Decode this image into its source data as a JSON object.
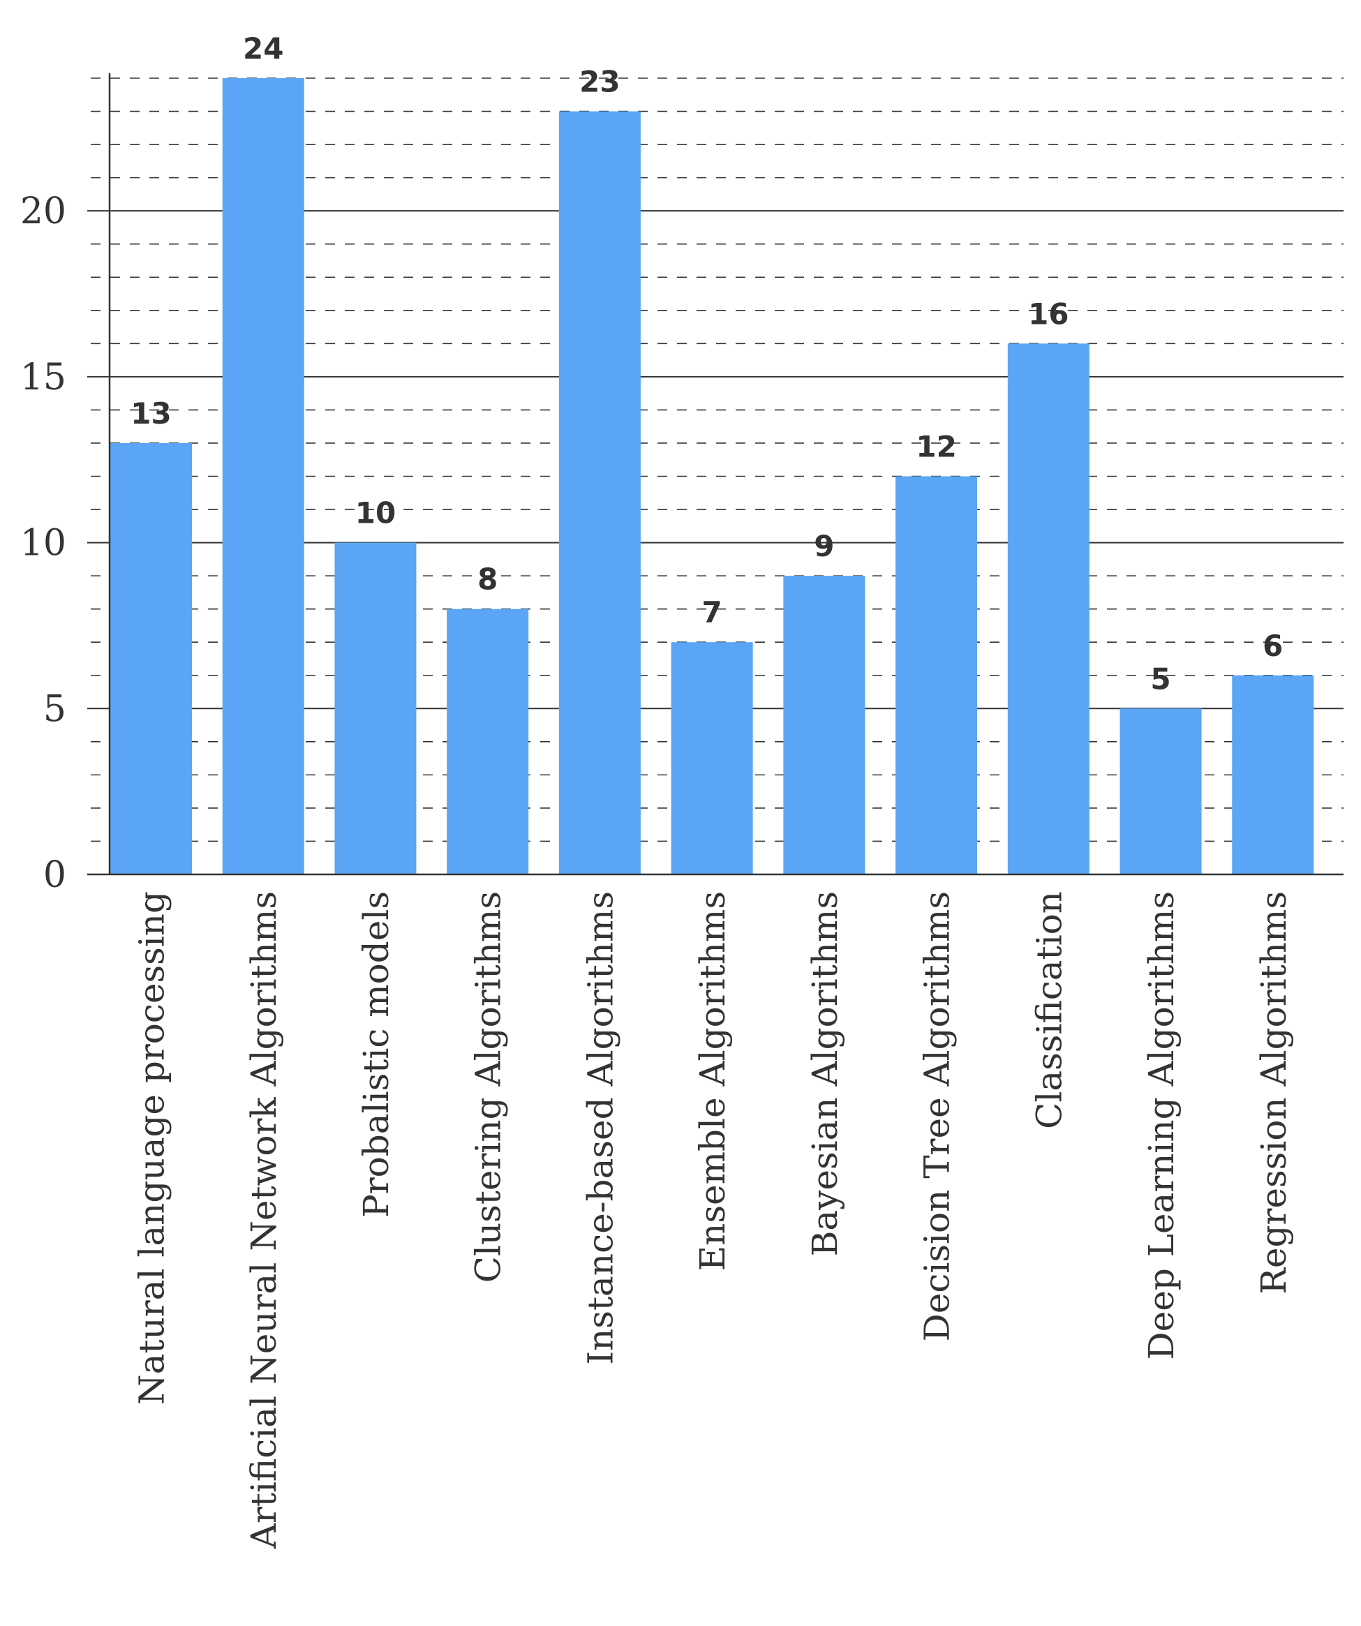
{
  "chart_data": {
    "type": "bar",
    "title": "",
    "xlabel": "",
    "ylabel": "",
    "categories": [
      "Natural  language processing",
      "Artificial Neural Network  Algorithms",
      "Probalistic models",
      "Clustering Algorithms",
      "Instance-based Algorithms",
      "Ensemble Algorithms",
      "Bayesian Algorithms",
      "Decision Tree Algorithms",
      "Classification",
      "Deep Learning Algorithms",
      "Regression Algorithms"
    ],
    "values": [
      13,
      24,
      10,
      8,
      23,
      7,
      9,
      12,
      16,
      5,
      6
    ],
    "ylim": [
      0,
      24
    ],
    "yticks": [
      0,
      5,
      10,
      15,
      20
    ],
    "grid": {
      "major": true,
      "minor": true,
      "minor_style": "dashed"
    },
    "data_labels": true,
    "legend": "none",
    "colors": {
      "bar": "#5aa5f5",
      "grid": "#333333",
      "text": "#333333"
    }
  }
}
